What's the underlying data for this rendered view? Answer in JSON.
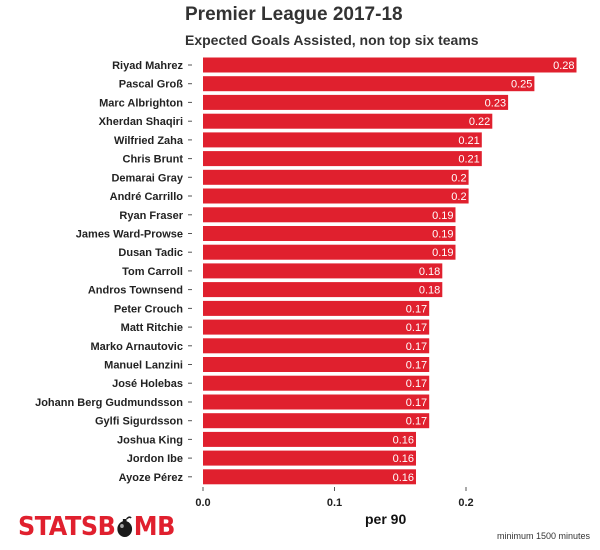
{
  "chart_data": {
    "type": "bar",
    "orientation": "horizontal",
    "title": "Premier League 2017-18",
    "subtitle": "Expected Goals Assisted, non top six teams",
    "xlabel": "per 90",
    "ylabel": "",
    "xlim": [
      0,
      0.29
    ],
    "xticks": [
      "0.0",
      "0.1",
      "0.2"
    ],
    "grid": false,
    "bar_color": "#e0202e",
    "categories": [
      "Riyad Mahrez",
      "Pascal Groß",
      "Marc Albrighton",
      "Xherdan Shaqiri",
      "Wilfried Zaha",
      "Chris Brunt",
      "Demarai Gray",
      "André Carrillo",
      "Ryan Fraser",
      "James Ward-Prowse",
      "Dusan Tadic",
      "Tom Carroll",
      "Andros Townsend",
      "Peter Crouch",
      "Matt Ritchie",
      "Marko Arnautovic",
      "Manuel Lanzini",
      "José Holebas",
      "Johann Berg Gudmundsson",
      "Gylfi Sigurdsson",
      "Joshua King",
      "Jordon Ibe",
      "Ayoze Pérez"
    ],
    "values": [
      0.284,
      0.252,
      0.232,
      0.22,
      0.212,
      0.212,
      0.202,
      0.202,
      0.192,
      0.192,
      0.192,
      0.182,
      0.182,
      0.172,
      0.172,
      0.172,
      0.172,
      0.172,
      0.172,
      0.172,
      0.162,
      0.162,
      0.162
    ],
    "data_labels": [
      "0.28",
      "0.25",
      "0.23",
      "0.22",
      "0.21",
      "0.21",
      "0.2",
      "0.2",
      "0.19",
      "0.19",
      "0.19",
      "0.18",
      "0.18",
      "0.17",
      "0.17",
      "0.17",
      "0.17",
      "0.17",
      "0.17",
      "0.17",
      "0.16",
      "0.16",
      "0.16"
    ]
  },
  "branding": {
    "logo_text_left": "STATSB",
    "logo_text_right": "MB",
    "footnote": "minimum 1500 minutes"
  }
}
